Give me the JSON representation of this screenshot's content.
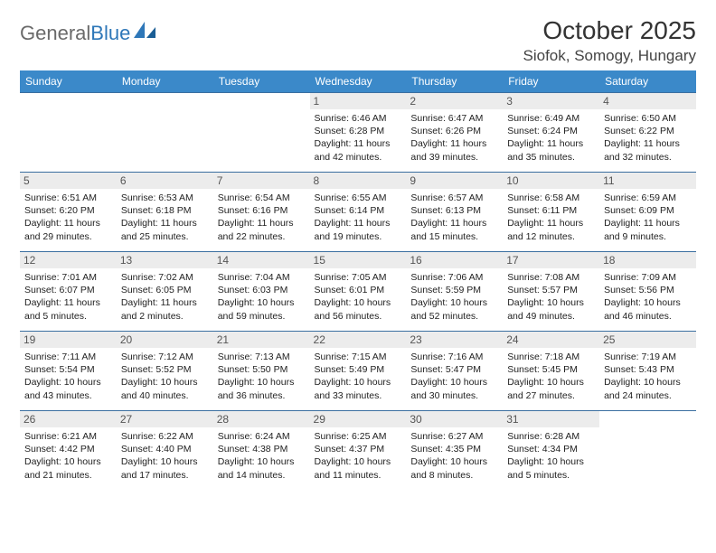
{
  "brand": {
    "word1": "General",
    "word2": "Blue"
  },
  "title": "October 2025",
  "location": "Siofok, Somogy, Hungary",
  "colors": {
    "header_bg": "#3b89c9",
    "header_text": "#ffffff",
    "row_border": "#3b6fa0",
    "daynum_bg": "#ececec",
    "brand_grey": "#6a6a6a",
    "brand_blue": "#2e77b8"
  },
  "weekdays": [
    "Sunday",
    "Monday",
    "Tuesday",
    "Wednesday",
    "Thursday",
    "Friday",
    "Saturday"
  ],
  "weeks": [
    [
      {
        "n": "",
        "sr": "",
        "ss": "",
        "dl": ""
      },
      {
        "n": "",
        "sr": "",
        "ss": "",
        "dl": ""
      },
      {
        "n": "",
        "sr": "",
        "ss": "",
        "dl": ""
      },
      {
        "n": "1",
        "sr": "6:46 AM",
        "ss": "6:28 PM",
        "dl": "11 hours and 42 minutes."
      },
      {
        "n": "2",
        "sr": "6:47 AM",
        "ss": "6:26 PM",
        "dl": "11 hours and 39 minutes."
      },
      {
        "n": "3",
        "sr": "6:49 AM",
        "ss": "6:24 PM",
        "dl": "11 hours and 35 minutes."
      },
      {
        "n": "4",
        "sr": "6:50 AM",
        "ss": "6:22 PM",
        "dl": "11 hours and 32 minutes."
      }
    ],
    [
      {
        "n": "5",
        "sr": "6:51 AM",
        "ss": "6:20 PM",
        "dl": "11 hours and 29 minutes."
      },
      {
        "n": "6",
        "sr": "6:53 AM",
        "ss": "6:18 PM",
        "dl": "11 hours and 25 minutes."
      },
      {
        "n": "7",
        "sr": "6:54 AM",
        "ss": "6:16 PM",
        "dl": "11 hours and 22 minutes."
      },
      {
        "n": "8",
        "sr": "6:55 AM",
        "ss": "6:14 PM",
        "dl": "11 hours and 19 minutes."
      },
      {
        "n": "9",
        "sr": "6:57 AM",
        "ss": "6:13 PM",
        "dl": "11 hours and 15 minutes."
      },
      {
        "n": "10",
        "sr": "6:58 AM",
        "ss": "6:11 PM",
        "dl": "11 hours and 12 minutes."
      },
      {
        "n": "11",
        "sr": "6:59 AM",
        "ss": "6:09 PM",
        "dl": "11 hours and 9 minutes."
      }
    ],
    [
      {
        "n": "12",
        "sr": "7:01 AM",
        "ss": "6:07 PM",
        "dl": "11 hours and 5 minutes."
      },
      {
        "n": "13",
        "sr": "7:02 AM",
        "ss": "6:05 PM",
        "dl": "11 hours and 2 minutes."
      },
      {
        "n": "14",
        "sr": "7:04 AM",
        "ss": "6:03 PM",
        "dl": "10 hours and 59 minutes."
      },
      {
        "n": "15",
        "sr": "7:05 AM",
        "ss": "6:01 PM",
        "dl": "10 hours and 56 minutes."
      },
      {
        "n": "16",
        "sr": "7:06 AM",
        "ss": "5:59 PM",
        "dl": "10 hours and 52 minutes."
      },
      {
        "n": "17",
        "sr": "7:08 AM",
        "ss": "5:57 PM",
        "dl": "10 hours and 49 minutes."
      },
      {
        "n": "18",
        "sr": "7:09 AM",
        "ss": "5:56 PM",
        "dl": "10 hours and 46 minutes."
      }
    ],
    [
      {
        "n": "19",
        "sr": "7:11 AM",
        "ss": "5:54 PM",
        "dl": "10 hours and 43 minutes."
      },
      {
        "n": "20",
        "sr": "7:12 AM",
        "ss": "5:52 PM",
        "dl": "10 hours and 40 minutes."
      },
      {
        "n": "21",
        "sr": "7:13 AM",
        "ss": "5:50 PM",
        "dl": "10 hours and 36 minutes."
      },
      {
        "n": "22",
        "sr": "7:15 AM",
        "ss": "5:49 PM",
        "dl": "10 hours and 33 minutes."
      },
      {
        "n": "23",
        "sr": "7:16 AM",
        "ss": "5:47 PM",
        "dl": "10 hours and 30 minutes."
      },
      {
        "n": "24",
        "sr": "7:18 AM",
        "ss": "5:45 PM",
        "dl": "10 hours and 27 minutes."
      },
      {
        "n": "25",
        "sr": "7:19 AM",
        "ss": "5:43 PM",
        "dl": "10 hours and 24 minutes."
      }
    ],
    [
      {
        "n": "26",
        "sr": "6:21 AM",
        "ss": "4:42 PM",
        "dl": "10 hours and 21 minutes."
      },
      {
        "n": "27",
        "sr": "6:22 AM",
        "ss": "4:40 PM",
        "dl": "10 hours and 17 minutes."
      },
      {
        "n": "28",
        "sr": "6:24 AM",
        "ss": "4:38 PM",
        "dl": "10 hours and 14 minutes."
      },
      {
        "n": "29",
        "sr": "6:25 AM",
        "ss": "4:37 PM",
        "dl": "10 hours and 11 minutes."
      },
      {
        "n": "30",
        "sr": "6:27 AM",
        "ss": "4:35 PM",
        "dl": "10 hours and 8 minutes."
      },
      {
        "n": "31",
        "sr": "6:28 AM",
        "ss": "4:34 PM",
        "dl": "10 hours and 5 minutes."
      },
      {
        "n": "",
        "sr": "",
        "ss": "",
        "dl": ""
      }
    ]
  ],
  "labels": {
    "sunrise": "Sunrise:",
    "sunset": "Sunset:",
    "daylight": "Daylight:"
  }
}
